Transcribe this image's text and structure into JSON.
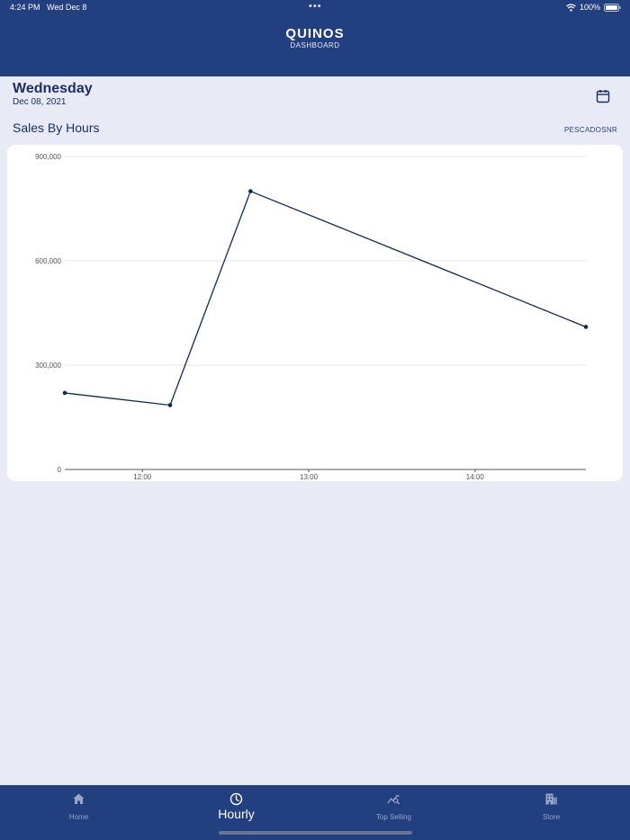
{
  "status_bar": {
    "time": "4:24 PM",
    "date": "Wed Dec 8",
    "battery": "100%"
  },
  "header": {
    "title": "QUINOS",
    "subtitle": "DASHBOARD"
  },
  "day": {
    "name": "Wednesday",
    "date": "Dec 08, 2021"
  },
  "section": {
    "title": "Sales By Hours",
    "store": "PESCADOSNR"
  },
  "chart_data": {
    "type": "line",
    "title": "",
    "xlabel": "",
    "ylabel": "",
    "x_ticks": [
      "12:00",
      "13:00",
      "14:00"
    ],
    "y_ticks": [
      "0",
      "300,000",
      "600,000",
      "900,000"
    ],
    "xlim": [
      "11:32",
      "14:40"
    ],
    "ylim": [
      0,
      900000
    ],
    "grid": true,
    "series": [
      {
        "points": [
          {
            "x": "11:32",
            "y": 220000
          },
          {
            "x": "12:10",
            "y": 185000
          },
          {
            "x": "12:39",
            "y": 800000
          },
          {
            "x": "14:40",
            "y": 410000
          }
        ]
      }
    ],
    "colors": {
      "line": "#0d2a52",
      "grid": "#e6e6e6",
      "axis": "#555555"
    }
  },
  "tabs": [
    {
      "label": "Home",
      "icon": "home-icon",
      "active": false
    },
    {
      "label": "Hourly",
      "icon": "clock-icon",
      "active": true
    },
    {
      "label": "Top Selling",
      "icon": "trend-search-icon",
      "active": false
    },
    {
      "label": "Store",
      "icon": "building-icon",
      "active": false
    }
  ],
  "colors": {
    "header": "#223f80",
    "background": "#e8ebf5",
    "accent_text": "#1b2f63",
    "tab_inactive": "#9aa7c6"
  }
}
